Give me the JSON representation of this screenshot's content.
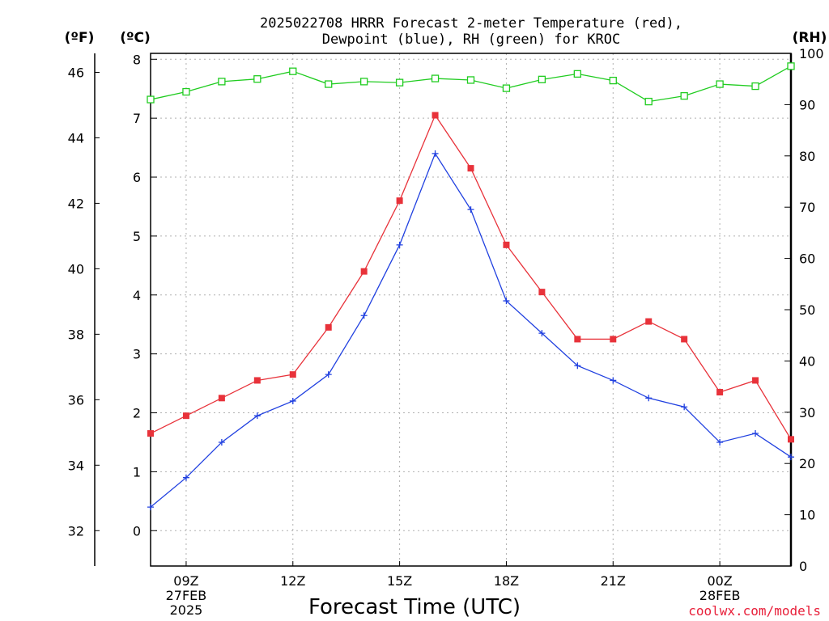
{
  "title": {
    "line1": "2025022708 HRRR Forecast 2-meter Temperature (red),",
    "line2": "Dewpoint (blue), RH (green) for KROC"
  },
  "units": {
    "fahrenheit": "(ºF)",
    "celsius": "(ºC)",
    "rh": "(RH)"
  },
  "xlabel": "Forecast Time (UTC)",
  "credit": "coolwx.com/models",
  "colors": {
    "temperature": "#e8323a",
    "dewpoint": "#2040e0",
    "rh": "#20cc20",
    "grid": "#b0b0b0"
  },
  "chart_data": {
    "type": "line",
    "x": [
      "08Z",
      "09Z",
      "10Z",
      "11Z",
      "12Z",
      "13Z",
      "14Z",
      "15Z",
      "16Z",
      "17Z",
      "18Z",
      "19Z",
      "20Z",
      "21Z",
      "22Z",
      "23Z",
      "00Z",
      "01Z",
      "02Z"
    ],
    "x_tick_labels": [
      {
        "hour": "09Z",
        "date": "27FEB",
        "year": "2025"
      },
      {
        "hour": "12Z",
        "date": "",
        "year": ""
      },
      {
        "hour": "15Z",
        "date": "",
        "year": ""
      },
      {
        "hour": "18Z",
        "date": "",
        "year": ""
      },
      {
        "hour": "21Z",
        "date": "",
        "year": ""
      },
      {
        "hour": "00Z",
        "date": "28FEB",
        "year": ""
      }
    ],
    "x_tick_indices": [
      1,
      4,
      7,
      10,
      13,
      16
    ],
    "series": [
      {
        "name": "Temperature",
        "axis": "celsius",
        "marker": "filled-square",
        "values": [
          1.65,
          1.95,
          2.25,
          2.55,
          2.65,
          3.45,
          4.4,
          5.6,
          7.05,
          6.15,
          4.85,
          4.05,
          3.25,
          3.25,
          3.55,
          3.25,
          2.35,
          2.55,
          1.55
        ]
      },
      {
        "name": "Dewpoint",
        "axis": "celsius",
        "marker": "plus",
        "values": [
          0.4,
          0.9,
          1.5,
          1.95,
          2.2,
          2.65,
          3.65,
          4.85,
          6.4,
          5.45,
          3.9,
          3.35,
          2.8,
          2.55,
          2.25,
          2.1,
          1.5,
          1.65,
          1.25
        ]
      },
      {
        "name": "RH",
        "axis": "rh",
        "marker": "open-square",
        "values": [
          91,
          92.5,
          94.5,
          95,
          96.5,
          94,
          94.5,
          94.3,
          95.1,
          94.8,
          93.2,
          94.9,
          96,
          94.7,
          90.6,
          91.7,
          94,
          93.6,
          97.5
        ]
      }
    ],
    "axes": {
      "left_f": {
        "ticks": [
          32,
          34,
          36,
          38,
          40,
          42,
          44,
          46
        ]
      },
      "celsius": {
        "ylim": [
          -0.6,
          8.1
        ],
        "ticks": [
          0,
          1,
          2,
          3,
          4,
          5,
          6,
          7,
          8
        ]
      },
      "rh": {
        "ylim": [
          0,
          100
        ],
        "ticks": [
          0,
          10,
          20,
          30,
          40,
          50,
          60,
          70,
          80,
          90,
          100
        ]
      }
    },
    "grid": true
  }
}
